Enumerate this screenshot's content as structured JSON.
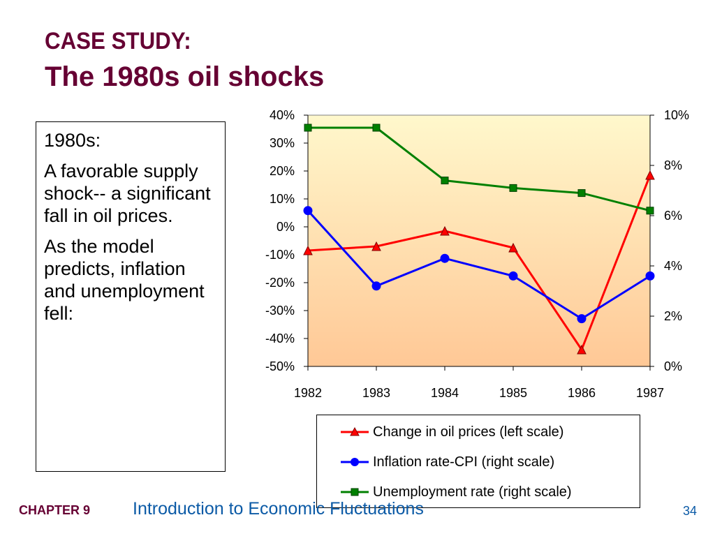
{
  "slide": {
    "title_line1": "CASE STUDY:",
    "title_line2": "The 1980s oil shocks",
    "body": [
      "1980s:",
      "A favorable supply shock-- a significant fall in oil prices.",
      "As the model predicts, inflation and unemployment fell:"
    ],
    "footer": {
      "chapter": "CHAPTER 9",
      "title": "Introduction to Economic Fluctuations",
      "page": "34"
    }
  },
  "colors": {
    "title": "#660033",
    "footer_text": "#0b5aa6",
    "oil": "#ff0000",
    "inflation": "#0000ff",
    "unemployment": "#008000",
    "plot_bg_top": "#fff8cc",
    "plot_bg_bottom": "#ffc896"
  },
  "chart_data": {
    "type": "line",
    "x": [
      1982,
      1983,
      1984,
      1985,
      1986,
      1987
    ],
    "x_tick_labels": [
      "1982",
      "1983",
      "1984",
      "1985",
      "1986",
      "1987"
    ],
    "left_axis": {
      "ylim": [
        -50,
        40
      ],
      "ticks": [
        40,
        30,
        20,
        10,
        0,
        -10,
        -20,
        -30,
        -40,
        -50
      ],
      "tick_labels": [
        "40%",
        "30%",
        "20%",
        "10%",
        "0%",
        "-10%",
        "-20%",
        "-30%",
        "-40%",
        "-50%"
      ]
    },
    "right_axis": {
      "ylim": [
        0,
        10
      ],
      "ticks": [
        10,
        8,
        6,
        4,
        2,
        0
      ],
      "tick_labels": [
        "10%",
        "8%",
        "6%",
        "4%",
        "2%",
        "0%"
      ]
    },
    "series": [
      {
        "name": "Change in oil prices (left scale)",
        "axis": "left",
        "marker": "triangle",
        "color": "#ff0000",
        "values": [
          -8.5,
          -7,
          -1.5,
          -7.5,
          -44,
          18.5
        ],
        "line_start": -5
      },
      {
        "name": "Inflation rate-CPI (right scale)",
        "axis": "right",
        "marker": "circle",
        "color": "#0000ff",
        "values": [
          6.2,
          3.2,
          4.3,
          3.6,
          1.9,
          3.6
        ],
        "line_start": 6.7
      },
      {
        "name": "Unemployment rate (right scale)",
        "axis": "right",
        "marker": "square",
        "color": "#008000",
        "values": [
          9.5,
          9.5,
          7.4,
          7.1,
          6.9,
          6.2
        ]
      }
    ],
    "grid": false,
    "legend_position": "bottom-right"
  }
}
